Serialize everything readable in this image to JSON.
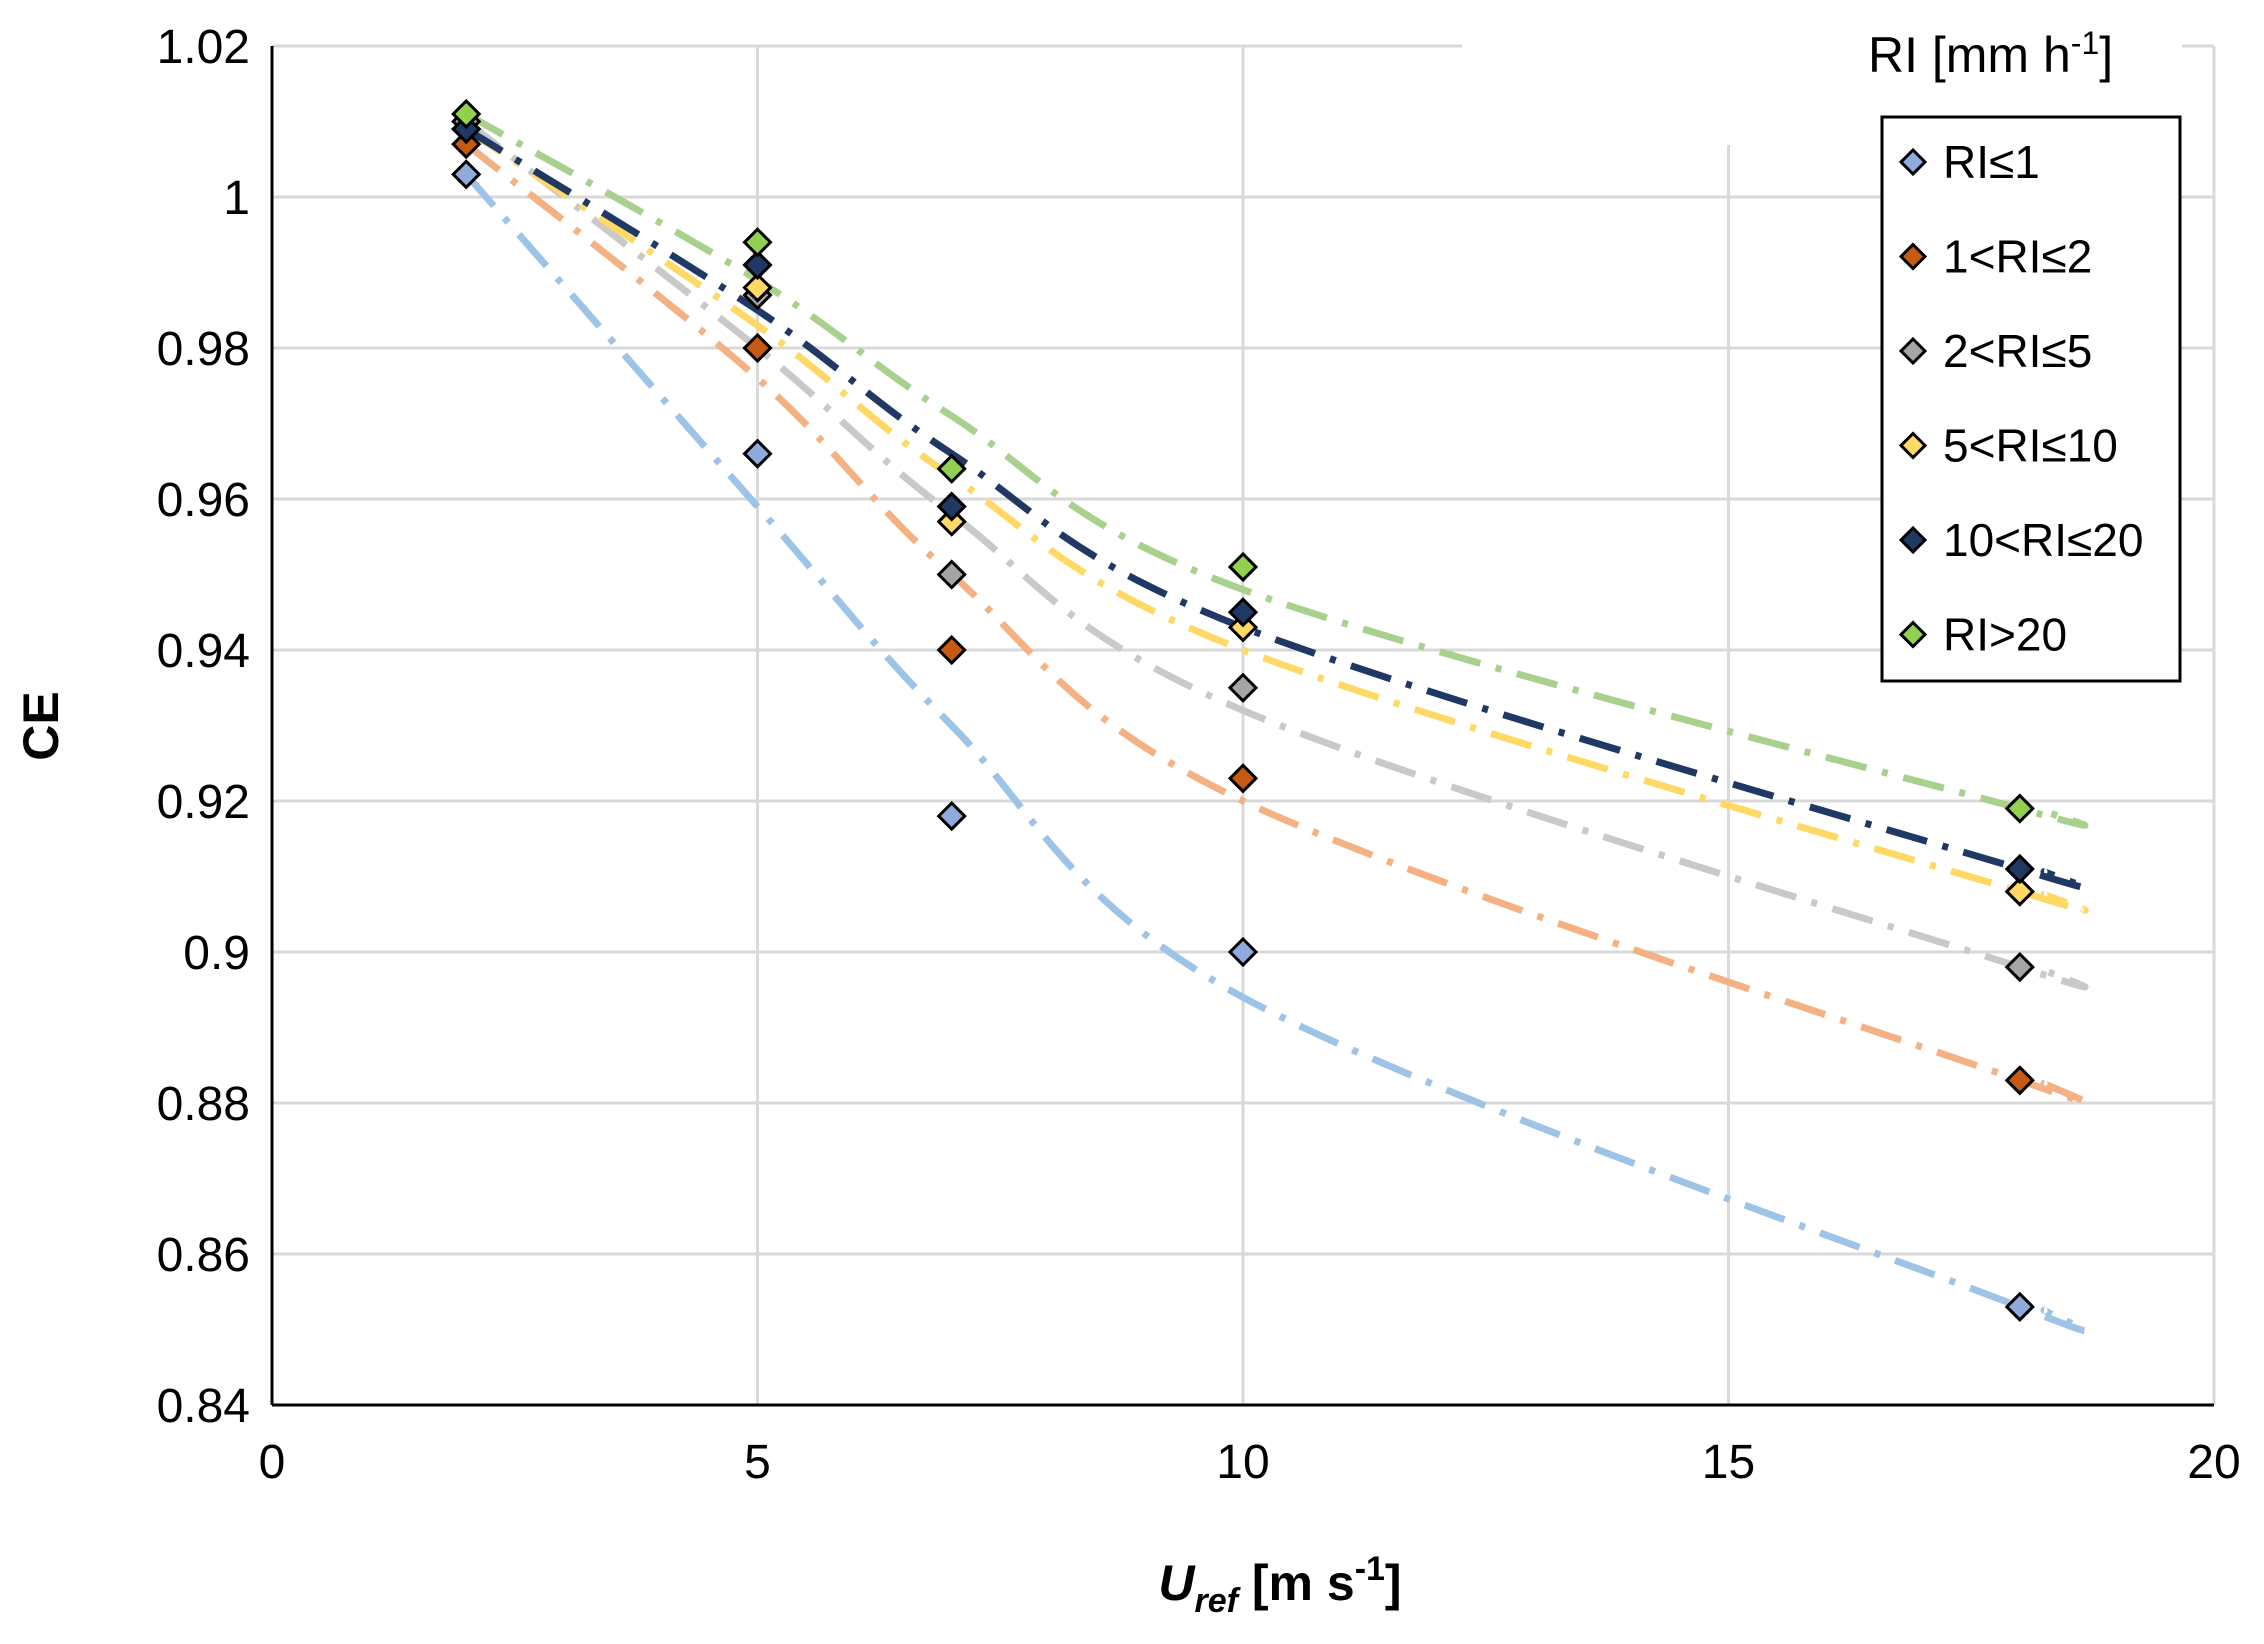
{
  "chart_data": {
    "type": "scatter",
    "title": "",
    "xlabel": {
      "main": "U",
      "sub": "ref",
      "unit": " [m s",
      "sup": "-1",
      "close": "]"
    },
    "ylabel": "CE",
    "xlim": [
      0,
      20
    ],
    "ylim": [
      0.84,
      1.02
    ],
    "x_ticks": [
      0,
      5,
      10,
      15,
      20
    ],
    "x_tick_labels": [
      "0",
      "5",
      "10",
      "15",
      "20"
    ],
    "y_ticks": [
      0.84,
      0.86,
      0.88,
      0.9,
      0.92,
      0.94,
      0.96,
      0.98,
      1.0,
      1.02
    ],
    "y_tick_labels": [
      "0.84",
      "0.86",
      "0.88",
      "0.9",
      "0.92",
      "0.94",
      "0.96",
      "0.98",
      "1",
      "1.02"
    ],
    "grid": true,
    "legend": {
      "title": {
        "main": "RI [mm h",
        "sup": "-1",
        "close": "]"
      },
      "position": "top-right"
    },
    "x": [
      2,
      5,
      7,
      10,
      18
    ],
    "series": [
      {
        "name": "RI≤1",
        "color": "#8FAADC",
        "trend_color": "#9DC3E6",
        "values": [
          1.003,
          0.966,
          0.918,
          0.9,
          0.853
        ],
        "trend": [
          1.003,
          0.959,
          0.93,
          0.894,
          0.853
        ]
      },
      {
        "name": "1<RI≤2",
        "color": "#C55A11",
        "trend_color": "#F4B183",
        "values": [
          1.007,
          0.98,
          0.94,
          0.923,
          0.883
        ],
        "trend": [
          1.007,
          0.976,
          0.95,
          0.92,
          0.883
        ]
      },
      {
        "name": "2<RI≤5",
        "color": "#A5A5A5",
        "trend_color": "#C9C9C9",
        "values": [
          1.01,
          0.987,
          0.95,
          0.935,
          0.898
        ],
        "trend": [
          1.01,
          0.98,
          0.958,
          0.932,
          0.898
        ]
      },
      {
        "name": "5<RI≤10",
        "color": "#FFD966",
        "trend_color": "#FFD966",
        "values": [
          1.009,
          0.988,
          0.957,
          0.943,
          0.908
        ],
        "trend": [
          1.009,
          0.983,
          0.963,
          0.94,
          0.908
        ]
      },
      {
        "name": "10<RI≤20",
        "color": "#1F3864",
        "trend_color": "#1F3864",
        "values": [
          1.009,
          0.991,
          0.959,
          0.945,
          0.911
        ],
        "trend": [
          1.009,
          0.985,
          0.966,
          0.943,
          0.911
        ]
      },
      {
        "name": "RI>20",
        "color": "#92D050",
        "trend_color": "#A9D18E",
        "values": [
          1.011,
          0.994,
          0.964,
          0.951,
          0.919
        ],
        "trend": [
          1.011,
          0.989,
          0.971,
          0.948,
          0.919
        ]
      }
    ]
  }
}
